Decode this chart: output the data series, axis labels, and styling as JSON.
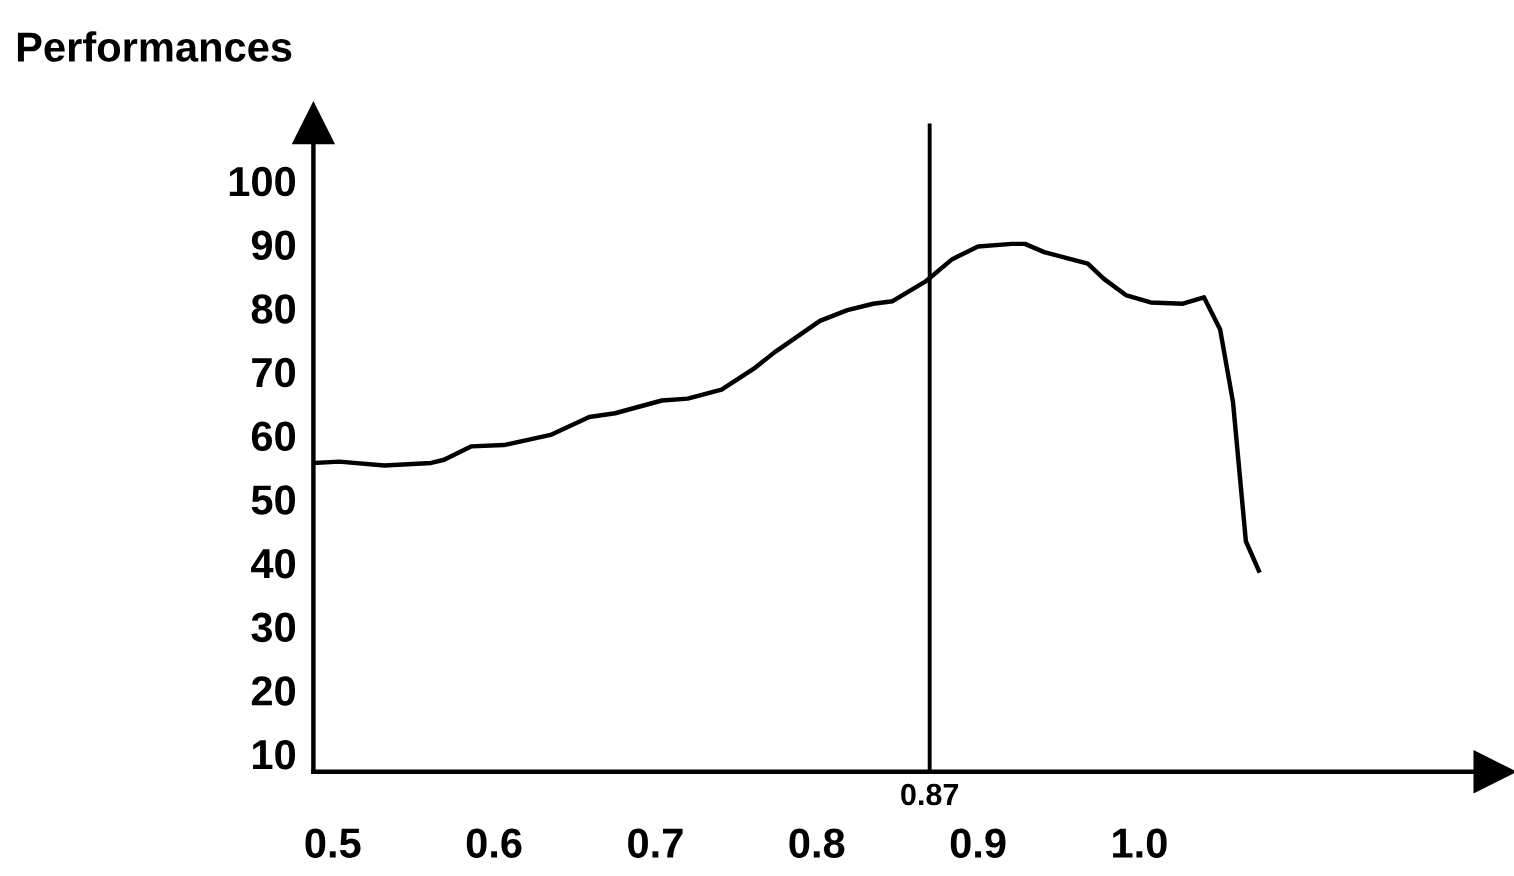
{
  "chart_data": {
    "type": "line",
    "ylabel": "Performances",
    "x": [
      0.489,
      0.504,
      0.532,
      0.561,
      0.569,
      0.586,
      0.606,
      0.635,
      0.659,
      0.675,
      0.704,
      0.72,
      0.741,
      0.761,
      0.774,
      0.802,
      0.819,
      0.835,
      0.847,
      0.868,
      0.884,
      0.9,
      0.921,
      0.929,
      0.941,
      0.968,
      0.978,
      0.992,
      1.007,
      1.027,
      1.04,
      1.05,
      1.058,
      1.066,
      1.074
    ],
    "series": [
      {
        "color": "#000000",
        "values": [
          55.7,
          55.9,
          55.3,
          55.7,
          56.2,
          58.3,
          58.5,
          60.1,
          62.9,
          63.5,
          65.5,
          65.8,
          67.2,
          70.5,
          73.1,
          78,
          79.7,
          80.7,
          81.1,
          84.3,
          87.7,
          89.7,
          90.1,
          90.1,
          88.8,
          87,
          84.6,
          82,
          80.9,
          80.7,
          81.7,
          76.7,
          65.3,
          43.4,
          38.8
        ]
      }
    ],
    "xlim": [
      0.488,
      1.22
    ],
    "xticks": [
      {
        "value": 0.5,
        "label": "0.5"
      },
      {
        "value": 0.6,
        "label": "0.6"
      },
      {
        "value": 0.7,
        "label": "0.7"
      },
      {
        "value": 0.8,
        "label": "0.8"
      },
      {
        "value": 0.9,
        "label": "0.9"
      },
      {
        "value": 1.0,
        "label": "1.0"
      }
    ],
    "ylim": [
      7.2,
      109
    ],
    "yticks": [
      10,
      20,
      30,
      40,
      50,
      60,
      70,
      80,
      90,
      100
    ],
    "ref_lines": [
      {
        "axis": "x",
        "value": 0.87,
        "label": "0.87"
      }
    ],
    "grid": false,
    "legend": false,
    "marker": "none",
    "line_style": "solid"
  }
}
